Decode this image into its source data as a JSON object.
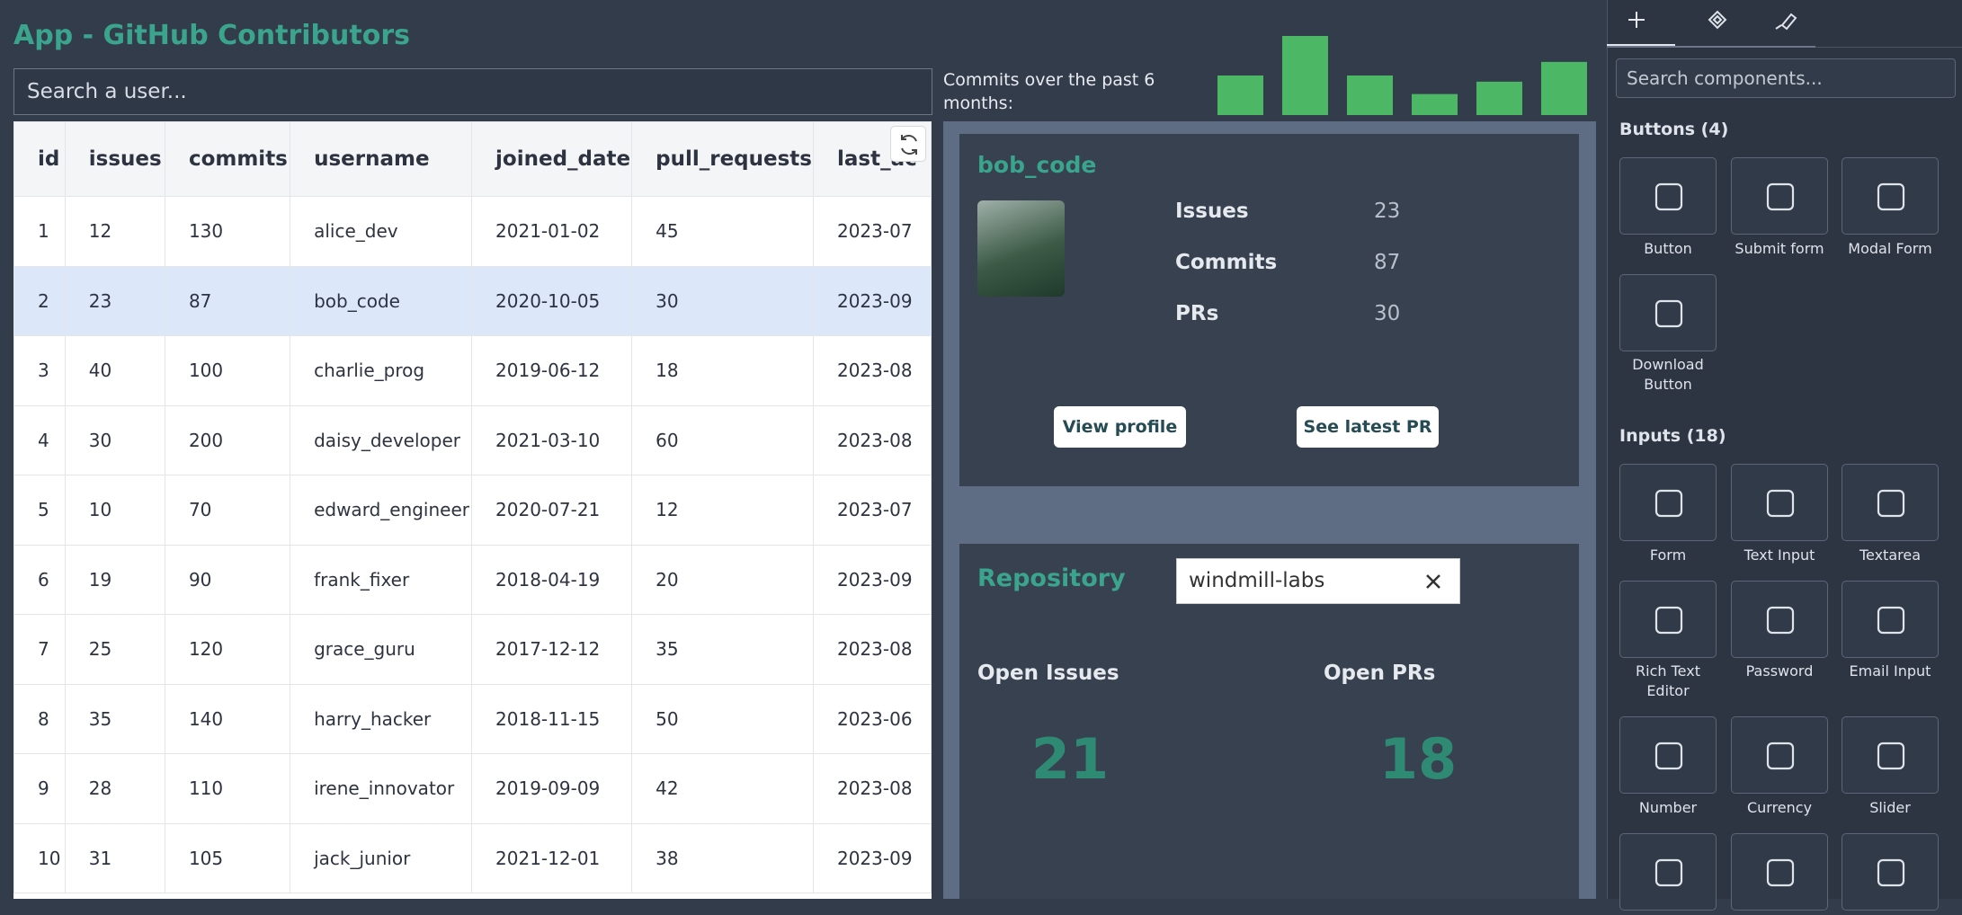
{
  "app": {
    "title": "App - GitHub Contributors",
    "search_placeholder": "Search a user..."
  },
  "table": {
    "columns": [
      "id",
      "issues",
      "commits",
      "username",
      "joined_date",
      "pull_requests",
      "last_ac"
    ],
    "rows": [
      [
        1,
        12,
        130,
        "alice_dev",
        "2021-01-02",
        45,
        "2023-07"
      ],
      [
        2,
        23,
        87,
        "bob_code",
        "2020-10-05",
        30,
        "2023-09"
      ],
      [
        3,
        40,
        100,
        "charlie_prog",
        "2019-06-12",
        18,
        "2023-08"
      ],
      [
        4,
        30,
        200,
        "daisy_developer",
        "2021-03-10",
        60,
        "2023-08"
      ],
      [
        5,
        10,
        70,
        "edward_engineer",
        "2020-07-21",
        12,
        "2023-07"
      ],
      [
        6,
        19,
        90,
        "frank_fixer",
        "2018-04-19",
        20,
        "2023-09"
      ],
      [
        7,
        25,
        120,
        "grace_guru",
        "2017-12-12",
        35,
        "2023-08"
      ],
      [
        8,
        35,
        140,
        "harry_hacker",
        "2018-11-15",
        50,
        "2023-06"
      ],
      [
        9,
        28,
        110,
        "irene_innovator",
        "2019-09-09",
        42,
        "2023-08"
      ],
      [
        10,
        31,
        105,
        "jack_junior",
        "2021-12-01",
        38,
        "2023-09"
      ]
    ],
    "selected_row": 1
  },
  "commits_chart": {
    "label": "Commits over the past 6 months:",
    "values": [
      32,
      64,
      32,
      17,
      27,
      43
    ],
    "color": "#4cb866"
  },
  "profile": {
    "username": "bob_code",
    "stats": [
      {
        "label": "Issues",
        "value": "23"
      },
      {
        "label": "Commits",
        "value": "87"
      },
      {
        "label": "PRs",
        "value": "30"
      }
    ],
    "buttons": [
      "View profile",
      "See latest PR"
    ]
  },
  "repository": {
    "label": "Repository",
    "input": "windmill-labs",
    "metrics": [
      {
        "label": "Open Issues",
        "value": "21"
      },
      {
        "label": "Open PRs",
        "value": "18"
      }
    ]
  },
  "sidebar": {
    "search_placeholder": "Search components...",
    "sections": [
      {
        "title": "Buttons (4)",
        "items": [
          "Button",
          "Submit form",
          "Modal Form",
          "Download Button"
        ]
      },
      {
        "title": "Inputs (18)",
        "items": [
          "Form",
          "Text Input",
          "Textarea",
          "Rich Text Editor",
          "Password",
          "Email Input",
          "Number",
          "Currency",
          "Slider"
        ]
      }
    ]
  }
}
